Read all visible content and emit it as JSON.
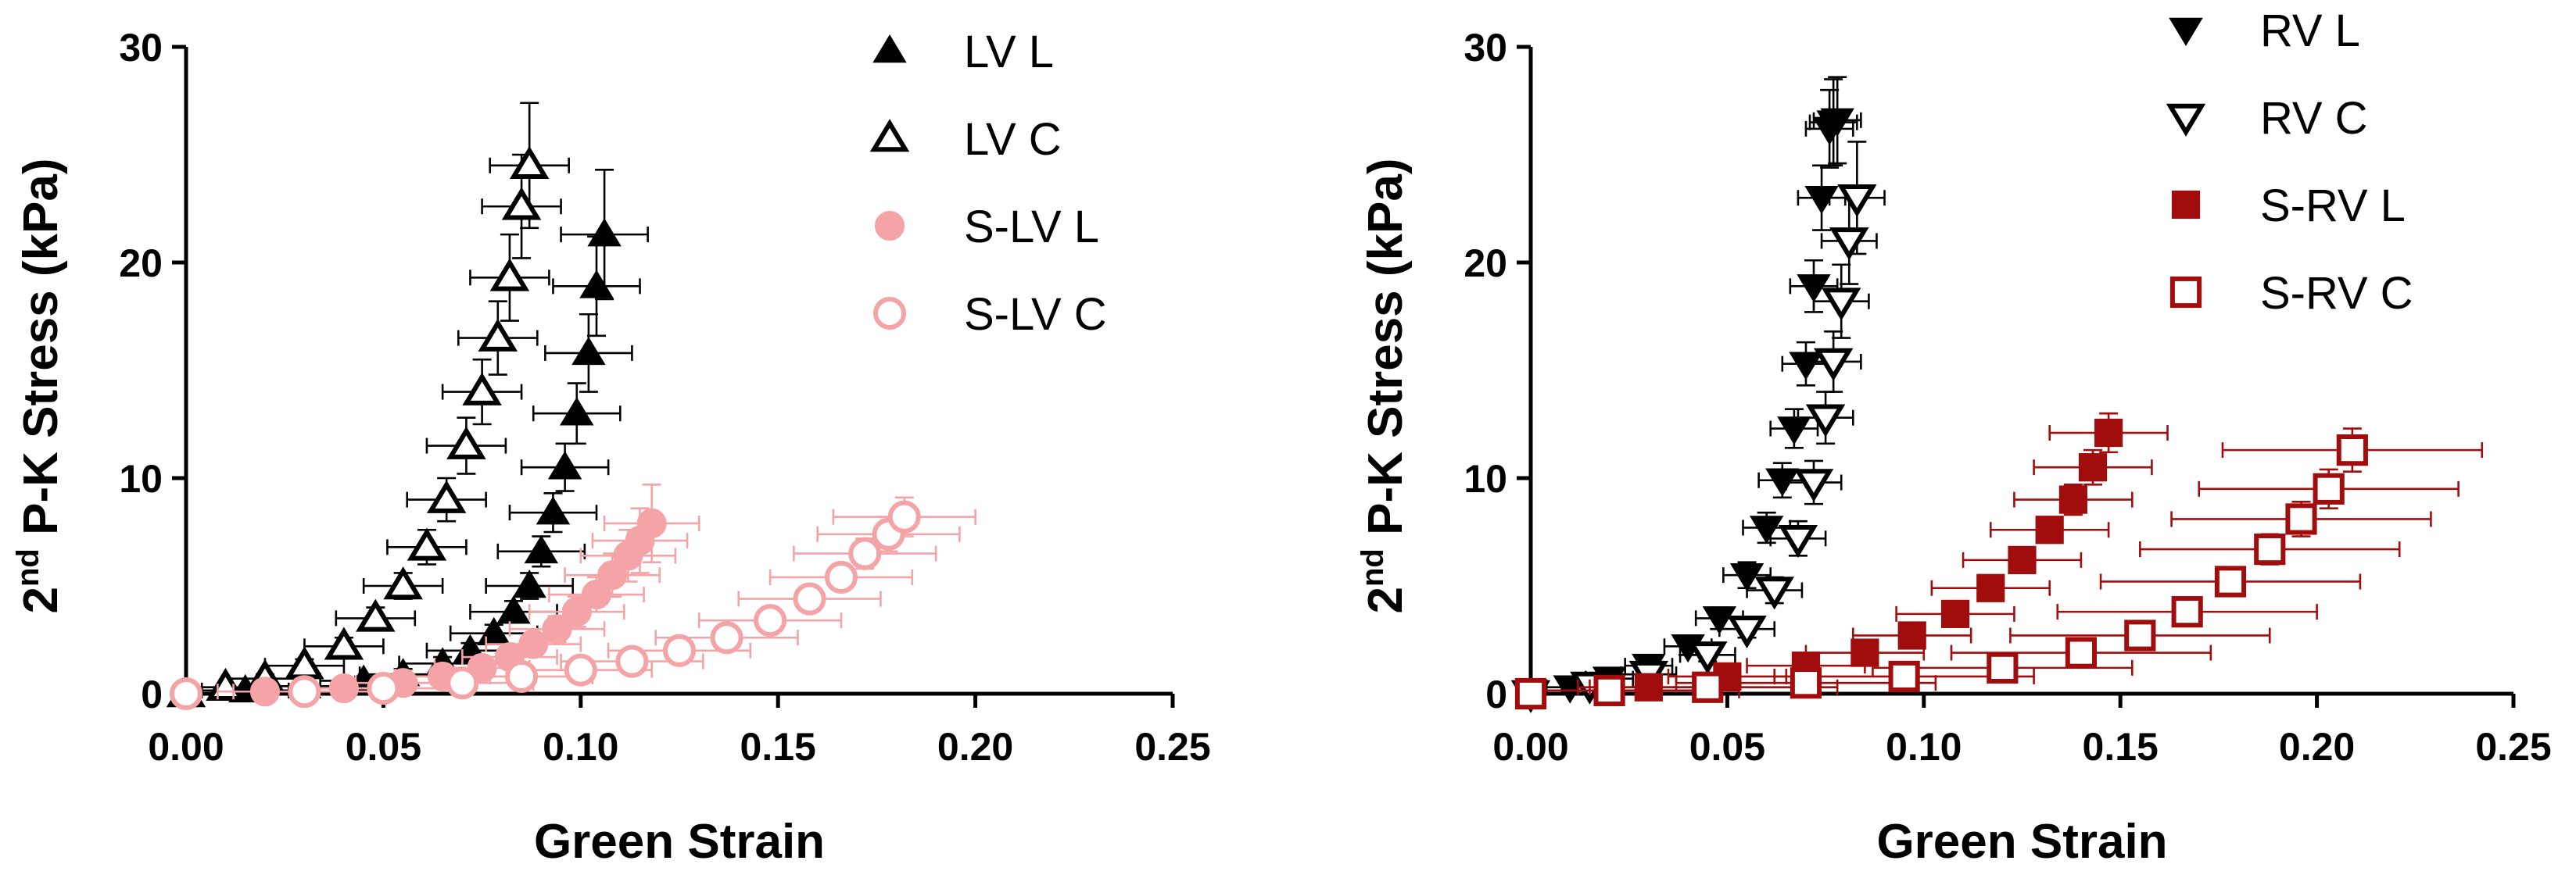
{
  "colors": {
    "black": "#000000",
    "pink": "#f4a3a6",
    "darkred": "#a10d0d"
  },
  "chart_data": [
    {
      "type": "scatter",
      "xlabel": "Green Strain",
      "ylabel_pre": "2",
      "ylabel_sup": "nd",
      "ylabel_post": " P-K Stress (kPa)",
      "xlim": [
        0,
        0.25
      ],
      "ylim": [
        0,
        30
      ],
      "xticks": [
        0,
        0.05,
        0.1,
        0.15,
        0.2,
        0.25
      ],
      "xtick_labels": [
        "0.00",
        "0.05",
        "0.10",
        "0.15",
        "0.20",
        "0.25"
      ],
      "yticks": [
        0,
        10,
        20,
        30
      ],
      "ytick_labels": [
        "0",
        "10",
        "20",
        "30"
      ],
      "legend_position": "top-right",
      "series": [
        {
          "name": "LV L",
          "marker": "triangle-up-filled",
          "color": "#000000",
          "x": [
            0.0,
            0.015,
            0.03,
            0.045,
            0.055,
            0.065,
            0.072,
            0.078,
            0.083,
            0.087,
            0.09,
            0.093,
            0.096,
            0.099,
            0.102,
            0.104,
            0.106
          ],
          "y": [
            0.0,
            0.15,
            0.35,
            0.6,
            0.9,
            1.4,
            2.0,
            2.8,
            3.8,
            5.0,
            6.6,
            8.4,
            10.5,
            13.0,
            15.8,
            18.9,
            21.3
          ],
          "xerr": 0.011,
          "yerr": [
            0,
            0.1,
            0.15,
            0.2,
            0.25,
            0.3,
            0.35,
            0.4,
            0.5,
            0.6,
            0.7,
            0.9,
            1.1,
            1.4,
            1.8,
            2.3,
            3.0
          ]
        },
        {
          "name": "LV C",
          "marker": "triangle-up-open",
          "color": "#000000",
          "x": [
            0.0,
            0.01,
            0.02,
            0.03,
            0.04,
            0.048,
            0.055,
            0.061,
            0.066,
            0.071,
            0.075,
            0.079,
            0.082,
            0.085,
            0.087
          ],
          "y": [
            0.0,
            0.3,
            0.7,
            1.3,
            2.2,
            3.5,
            5.0,
            6.8,
            9.0,
            11.5,
            14.0,
            16.5,
            19.3,
            22.6,
            24.5
          ],
          "xerr": 0.01,
          "yerr": [
            0,
            0.1,
            0.2,
            0.3,
            0.4,
            0.5,
            0.6,
            0.8,
            1.0,
            1.3,
            1.5,
            1.7,
            2.0,
            2.4,
            2.9
          ]
        },
        {
          "name": "S-LV L",
          "marker": "circle-filled",
          "color": "#f4a3a6",
          "x": [
            0.0,
            0.02,
            0.04,
            0.055,
            0.065,
            0.075,
            0.082,
            0.088,
            0.094,
            0.099,
            0.104,
            0.108,
            0.112,
            0.115,
            0.118
          ],
          "y": [
            0.0,
            0.1,
            0.25,
            0.5,
            0.8,
            1.2,
            1.7,
            2.3,
            3.0,
            3.8,
            4.6,
            5.5,
            6.4,
            7.1,
            7.9
          ],
          "xerr": 0.012,
          "yerr": [
            0,
            0.05,
            0.1,
            0.15,
            0.2,
            0.3,
            0.4,
            0.5,
            0.6,
            0.7,
            0.8,
            1.0,
            1.2,
            1.5,
            1.8
          ]
        },
        {
          "name": "S-LV C",
          "marker": "circle-open",
          "color": "#f4a3a6",
          "x": [
            0.0,
            0.03,
            0.05,
            0.07,
            0.085,
            0.1,
            0.113,
            0.125,
            0.137,
            0.148,
            0.158,
            0.166,
            0.172,
            0.178,
            0.182
          ],
          "y": [
            0.0,
            0.1,
            0.25,
            0.5,
            0.8,
            1.1,
            1.5,
            2.0,
            2.6,
            3.4,
            4.4,
            5.4,
            6.5,
            7.4,
            8.2
          ],
          "xerr": 0.018,
          "yerr": [
            0,
            0.05,
            0.1,
            0.15,
            0.2,
            0.25,
            0.3,
            0.35,
            0.4,
            0.5,
            0.55,
            0.6,
            0.7,
            0.8,
            0.9
          ]
        }
      ]
    },
    {
      "type": "scatter",
      "xlabel": "Green Strain",
      "ylabel_pre": "2",
      "ylabel_sup": "nd",
      "ylabel_post": " P-K Stress (kPa)",
      "xlim": [
        0,
        0.25
      ],
      "ylim": [
        0,
        30
      ],
      "xticks": [
        0,
        0.05,
        0.1,
        0.15,
        0.2,
        0.25
      ],
      "xtick_labels": [
        "0.00",
        "0.05",
        "0.10",
        "0.15",
        "0.20",
        "0.25"
      ],
      "yticks": [
        0,
        10,
        20,
        30
      ],
      "ytick_labels": [
        "0",
        "10",
        "20",
        "30"
      ],
      "legend_position": "top-right",
      "series": [
        {
          "name": "RV L",
          "marker": "triangle-down-filled",
          "color": "#000000",
          "x": [
            0.0,
            0.01,
            0.02,
            0.03,
            0.04,
            0.048,
            0.055,
            0.06,
            0.064,
            0.067,
            0.07,
            0.072,
            0.074,
            0.076,
            0.077,
            0.078
          ],
          "y": [
            0.0,
            0.3,
            0.7,
            1.3,
            2.2,
            3.5,
            5.5,
            7.7,
            9.9,
            12.3,
            15.3,
            18.9,
            23.0,
            26.2,
            26.5,
            26.6
          ],
          "xerr": 0.006,
          "yerr": [
            0,
            0.1,
            0.2,
            0.3,
            0.4,
            0.5,
            0.6,
            0.7,
            0.8,
            0.9,
            1.0,
            1.2,
            1.5,
            1.8,
            2.0,
            2.0
          ]
        },
        {
          "name": "RV C",
          "marker": "triangle-down-open",
          "color": "#000000",
          "x": [
            0.0,
            0.015,
            0.03,
            0.045,
            0.055,
            0.062,
            0.068,
            0.072,
            0.075,
            0.077,
            0.079,
            0.081,
            0.083
          ],
          "y": [
            0.0,
            0.4,
            0.9,
            1.8,
            3.0,
            4.8,
            7.2,
            9.8,
            12.8,
            15.4,
            18.2,
            21.0,
            23.0
          ],
          "xerr": 0.007,
          "yerr": [
            0,
            0.1,
            0.2,
            0.3,
            0.4,
            0.6,
            0.8,
            1.0,
            1.2,
            1.4,
            1.7,
            2.0,
            2.6
          ]
        },
        {
          "name": "S-RV L",
          "marker": "square-filled",
          "color": "#a10d0d",
          "x": [
            0.0,
            0.03,
            0.05,
            0.07,
            0.085,
            0.097,
            0.108,
            0.117,
            0.125,
            0.132,
            0.138,
            0.143,
            0.147
          ],
          "y": [
            0.0,
            0.3,
            0.8,
            1.3,
            1.9,
            2.7,
            3.7,
            4.9,
            6.2,
            7.6,
            9.0,
            10.5,
            12.1
          ],
          "xerr": 0.015,
          "yerr": [
            0,
            0.1,
            0.15,
            0.2,
            0.25,
            0.3,
            0.35,
            0.4,
            0.5,
            0.6,
            0.7,
            0.8,
            0.9
          ]
        },
        {
          "name": "S-RV C",
          "marker": "square-open",
          "color": "#a10d0d",
          "x": [
            0.0,
            0.02,
            0.045,
            0.07,
            0.095,
            0.12,
            0.14,
            0.155,
            0.167,
            0.178,
            0.188,
            0.196,
            0.203,
            0.209
          ],
          "y": [
            0.0,
            0.15,
            0.3,
            0.5,
            0.8,
            1.2,
            1.9,
            2.7,
            3.8,
            5.2,
            6.7,
            8.1,
            9.5,
            11.3
          ],
          "xerr": 0.033,
          "yerr": [
            0,
            0.05,
            0.1,
            0.15,
            0.2,
            0.25,
            0.3,
            0.4,
            0.5,
            0.6,
            0.7,
            0.8,
            0.9,
            1.0
          ]
        }
      ]
    }
  ]
}
